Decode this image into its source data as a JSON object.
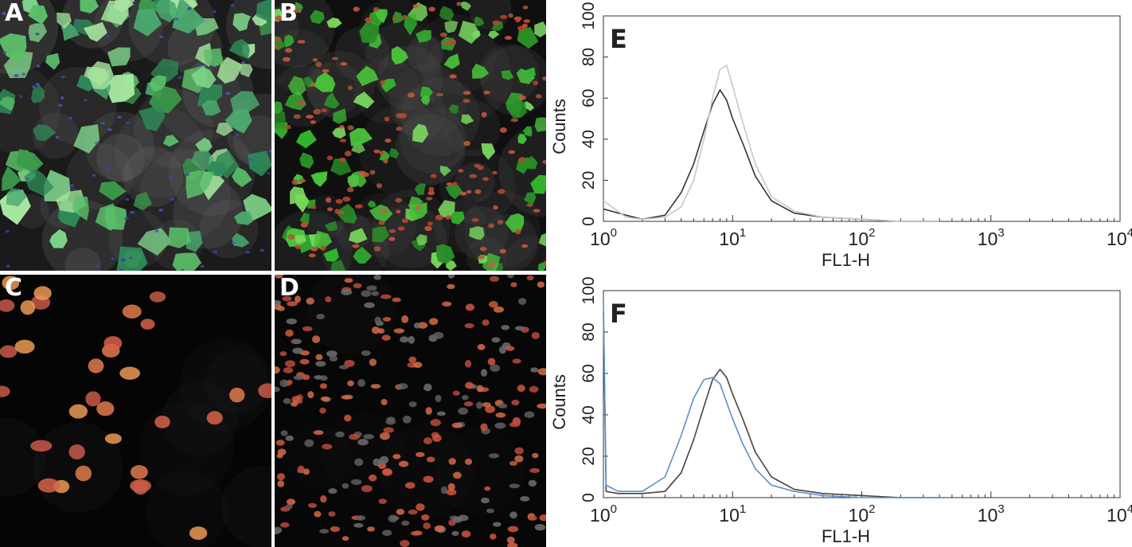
{
  "figure": {
    "panels": [
      {
        "letter": "A",
        "description_colors": {
          "cells": "#3c9a4c",
          "nuclei": "#3844a8"
        }
      },
      {
        "letter": "B",
        "description_colors": {
          "cells": "#33b52e",
          "nuclei": "#c0462a"
        }
      },
      {
        "letter": "C",
        "description_colors": {
          "nuclei": "#e27a4c"
        }
      },
      {
        "letter": "D",
        "description_colors": {
          "nuclei": "#d0573e",
          "other_nuclei": "#6f6f6f"
        }
      }
    ]
  },
  "chart_data": [
    {
      "panel": "E",
      "type": "line",
      "xlabel": "FL1-H",
      "ylabel": "Counts",
      "x_scale": "log",
      "xlim": [
        1,
        10000
      ],
      "ylim": [
        0,
        100
      ],
      "x_ticks": [
        "10^0",
        "10^1",
        "10^2",
        "10^3",
        "10^4"
      ],
      "y_ticks": [
        0,
        20,
        40,
        60,
        80,
        100
      ],
      "series": [
        {
          "color": "#333333",
          "x": [
            1,
            1.5,
            2,
            3,
            4,
            5,
            6,
            7,
            8,
            9,
            10,
            12,
            15,
            20,
            30,
            50,
            100,
            200,
            400
          ],
          "y": [
            6,
            3,
            1,
            3,
            14,
            28,
            44,
            57,
            64,
            59,
            50,
            38,
            22,
            10,
            4,
            2,
            1,
            0,
            0
          ]
        },
        {
          "color": "#c8c8c8",
          "x": [
            1,
            1.5,
            2,
            3,
            4,
            5,
            6,
            7,
            8,
            9,
            10,
            12,
            15,
            20,
            30,
            50,
            100,
            200,
            400
          ],
          "y": [
            10,
            2,
            1,
            2,
            7,
            20,
            40,
            60,
            74,
            76,
            66,
            48,
            28,
            12,
            5,
            2,
            1,
            0,
            0
          ]
        }
      ]
    },
    {
      "panel": "F",
      "type": "line",
      "xlabel": "FL1-H",
      "ylabel": "Counts",
      "x_scale": "log",
      "xlim": [
        1,
        10000
      ],
      "ylim": [
        0,
        100
      ],
      "x_ticks": [
        "10^0",
        "10^1",
        "10^2",
        "10^3",
        "10^4"
      ],
      "y_ticks": [
        0,
        20,
        40,
        60,
        80,
        100
      ],
      "series": [
        {
          "color": "#444444",
          "x": [
            1,
            1.05,
            1.3,
            2,
            3,
            4,
            5,
            6,
            7,
            8,
            9,
            10,
            12,
            15,
            20,
            30,
            50,
            100,
            200,
            400
          ],
          "y": [
            90,
            3,
            2,
            2,
            3,
            12,
            28,
            44,
            57,
            62,
            58,
            50,
            38,
            22,
            10,
            4,
            2,
            1,
            0,
            0
          ]
        },
        {
          "color": "#5a8fc9",
          "x": [
            1,
            1.05,
            1.3,
            2,
            3,
            4,
            5,
            6,
            7,
            8,
            9,
            10,
            12,
            15,
            20,
            30,
            50,
            100,
            200,
            400
          ],
          "y": [
            95,
            6,
            3,
            3,
            10,
            30,
            48,
            57,
            58,
            55,
            46,
            38,
            26,
            14,
            6,
            3,
            1,
            0,
            0,
            0
          ]
        }
      ]
    }
  ]
}
